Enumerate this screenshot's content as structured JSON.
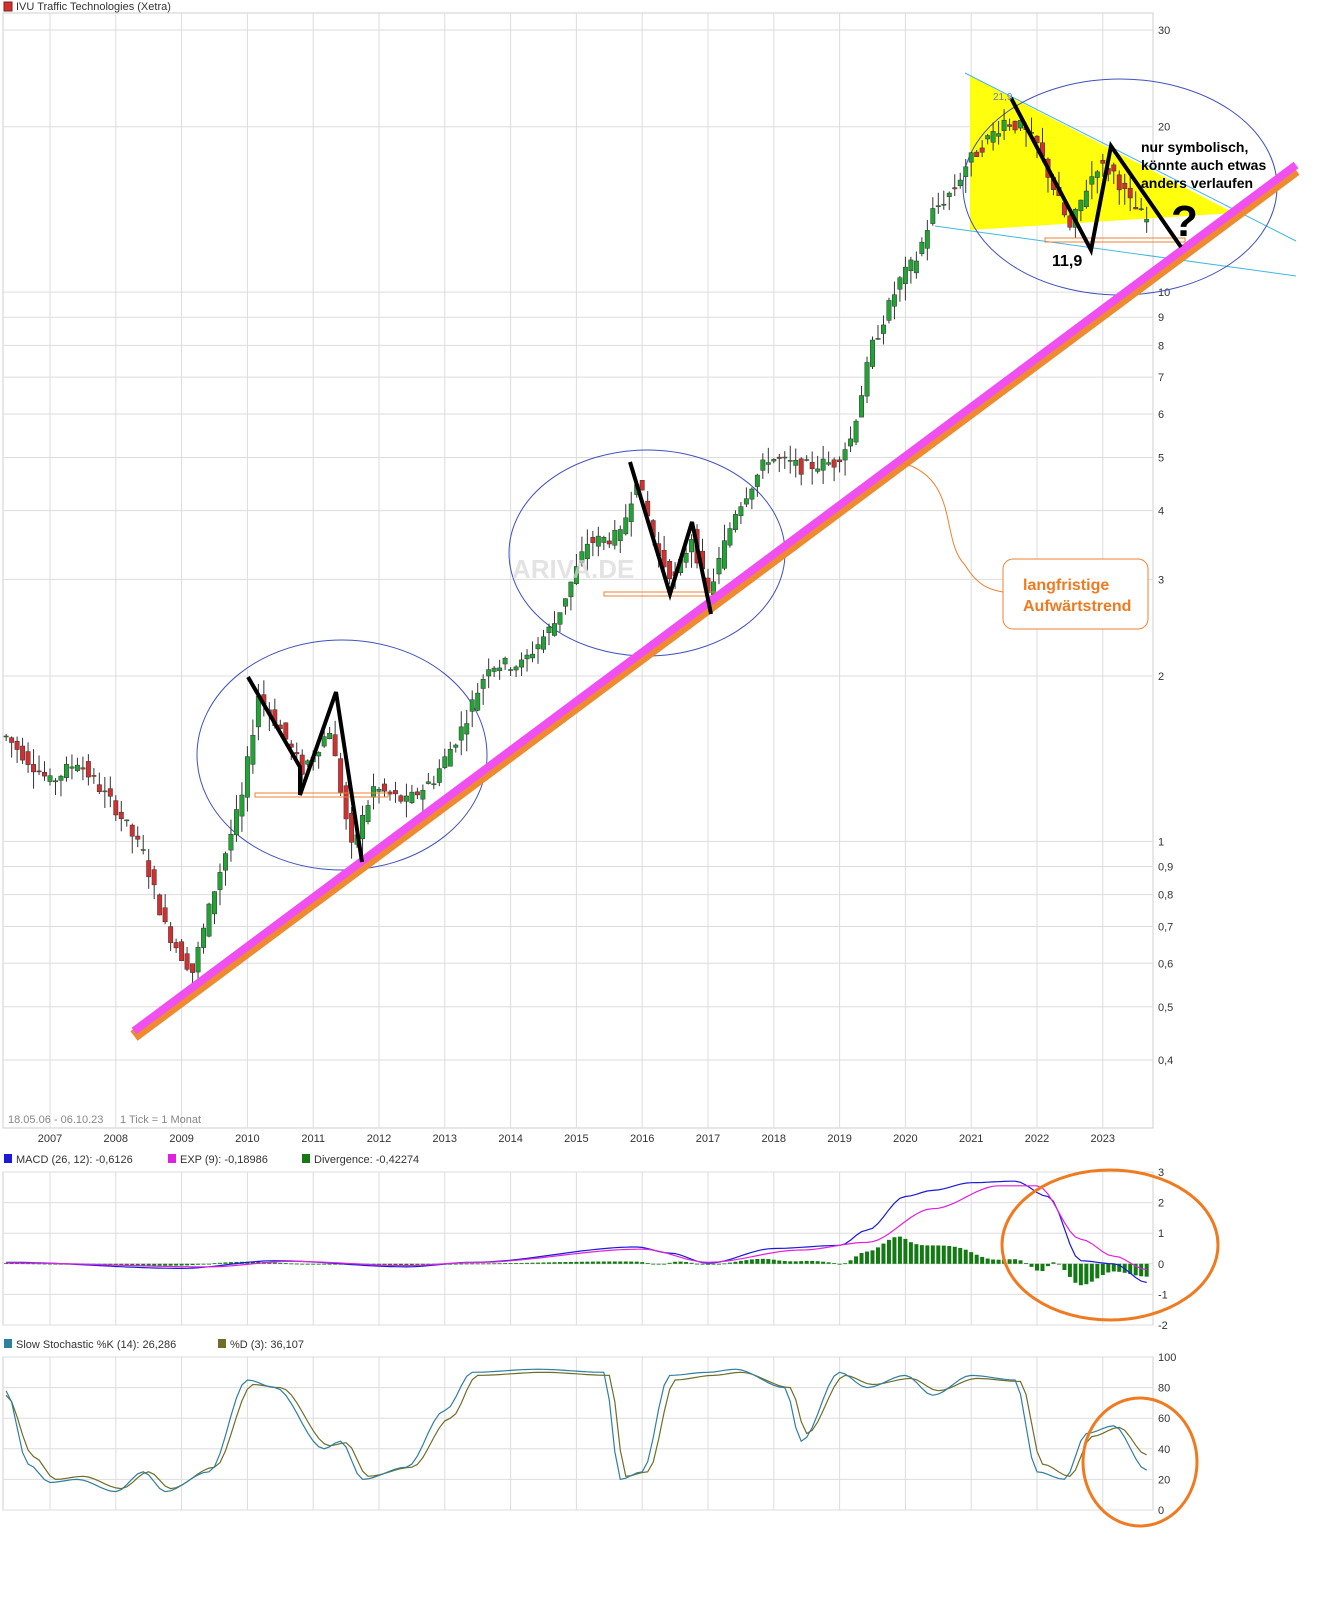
{
  "chart_title": "IVU Traffic Technologies (Xetra)",
  "footer": {
    "range": "18.05.06 - 06.10.23",
    "tick": "1 Tick = 1 Monat"
  },
  "watermark": "ARIVA.DE",
  "colors": {
    "up": "#22a335",
    "down": "#d03030",
    "macd": "#1a1ad8",
    "signal": "#e020e0",
    "divergence": "#137a13",
    "k": "#2f7f9f",
    "d": "#6e6e2a",
    "trend": "#f050f0",
    "trend_edge": "#f08a30",
    "annot": "#f08030",
    "wedge": "#ffff00",
    "grid": "#dddddd"
  },
  "years": [
    "2007",
    "2008",
    "2009",
    "2010",
    "2011",
    "2012",
    "2013",
    "2014",
    "2015",
    "2016",
    "2017",
    "2018",
    "2019",
    "2020",
    "2021",
    "2022",
    "2023"
  ],
  "price_ticks": [
    "30",
    "20",
    "10",
    "9",
    "8",
    "7",
    "6",
    "5",
    "4",
    "3",
    "2",
    "1",
    "0,9",
    "0,8",
    "0,7",
    "0,6",
    "0,5",
    "0,4"
  ],
  "annotations": {
    "low_label": "11,9",
    "high_label": "21,9",
    "note_lines": [
      "nur symbolisch,",
      "könnte auch etwas",
      "anders verlaufen"
    ],
    "question": "?",
    "trend_box": [
      "langfristige",
      "Aufwärtstrend"
    ]
  },
  "chart_data": [
    {
      "type": "candlestick",
      "title": "IVU Traffic Technologies (Xetra)",
      "y_scale": "log",
      "ylim": [
        0.36,
        31
      ],
      "x_range": [
        "2006-05",
        "2023-10"
      ],
      "series_anchors": [
        {
          "date": "2006-05",
          "close": 1.55
        },
        {
          "date": "2007-01",
          "close": 1.28
        },
        {
          "date": "2007-06",
          "close": 1.4
        },
        {
          "date": "2008-01",
          "close": 1.15
        },
        {
          "date": "2008-06",
          "close": 0.95
        },
        {
          "date": "2008-10",
          "close": 0.7
        },
        {
          "date": "2009-01",
          "close": 0.62
        },
        {
          "date": "2009-03",
          "close": 0.58
        },
        {
          "date": "2009-07",
          "close": 0.82
        },
        {
          "date": "2009-12",
          "close": 1.2
        },
        {
          "date": "2010-03",
          "close": 1.85
        },
        {
          "date": "2010-07",
          "close": 1.6
        },
        {
          "date": "2010-11",
          "close": 1.35
        },
        {
          "date": "2011-04",
          "close": 1.6
        },
        {
          "date": "2011-08",
          "close": 0.97
        },
        {
          "date": "2011-12",
          "close": 1.25
        },
        {
          "date": "2012-06",
          "close": 1.18
        },
        {
          "date": "2012-11",
          "close": 1.3
        },
        {
          "date": "2013-04",
          "close": 1.6
        },
        {
          "date": "2013-09",
          "close": 2.1
        },
        {
          "date": "2014-03",
          "close": 2.1
        },
        {
          "date": "2014-09",
          "close": 2.5
        },
        {
          "date": "2015-03",
          "close": 3.5
        },
        {
          "date": "2015-09",
          "close": 3.6
        },
        {
          "date": "2015-12",
          "close": 4.6
        },
        {
          "date": "2016-04",
          "close": 3.3
        },
        {
          "date": "2016-07",
          "close": 3.0
        },
        {
          "date": "2016-10",
          "close": 3.6
        },
        {
          "date": "2017-01",
          "close": 2.8
        },
        {
          "date": "2017-06",
          "close": 4.0
        },
        {
          "date": "2017-12",
          "close": 5.0
        },
        {
          "date": "2018-06",
          "close": 4.8
        },
        {
          "date": "2018-12",
          "close": 4.9
        },
        {
          "date": "2019-03",
          "close": 5.4
        },
        {
          "date": "2019-07",
          "close": 8.0
        },
        {
          "date": "2019-12",
          "close": 10.5
        },
        {
          "date": "2020-03",
          "close": 11.5
        },
        {
          "date": "2020-06",
          "close": 14.0
        },
        {
          "date": "2020-10",
          "close": 15.5
        },
        {
          "date": "2020-12",
          "close": 17.0
        },
        {
          "date": "2021-03",
          "close": 18.5
        },
        {
          "date": "2021-07",
          "close": 20.5
        },
        {
          "date": "2021-10",
          "close": 20.0
        },
        {
          "date": "2022-01",
          "close": 18.5
        },
        {
          "date": "2022-04",
          "close": 15.5
        },
        {
          "date": "2022-07",
          "close": 13.0
        },
        {
          "date": "2022-10",
          "close": 15.5
        },
        {
          "date": "2022-12",
          "close": 17.0
        },
        {
          "date": "2023-03",
          "close": 16.5
        },
        {
          "date": "2023-06",
          "close": 14.5
        },
        {
          "date": "2023-09",
          "close": 13.5
        }
      ],
      "marked_values": {
        "low": "11,9",
        "high": "21,9"
      }
    },
    {
      "type": "line",
      "title": "MACD",
      "ylim": [
        -2,
        3
      ],
      "yticks": [
        "3",
        "2",
        "1",
        "0",
        "-1",
        "-2"
      ],
      "legend": [
        {
          "label": "MACD (26, 12): -0,6126"
        },
        {
          "label": "EXP (9): -0,18986"
        },
        {
          "label": "Divergence: -0,42274"
        }
      ],
      "series": [
        {
          "name": "MACD (26, 12)",
          "points": [
            [
              "2006-05",
              0.05
            ],
            [
              "2009-01",
              -0.15
            ],
            [
              "2010-06",
              0.1
            ],
            [
              "2012-06",
              -0.1
            ],
            [
              "2013-06",
              0.05
            ],
            [
              "2015-12",
              0.55
            ],
            [
              "2016-06",
              0.35
            ],
            [
              "2017-01",
              0.02
            ],
            [
              "2018-01",
              0.5
            ],
            [
              "2019-01",
              0.6
            ],
            [
              "2019-06",
              1.1
            ],
            [
              "2020-01",
              2.2
            ],
            [
              "2020-06",
              2.4
            ],
            [
              "2021-01",
              2.65
            ],
            [
              "2021-09",
              2.7
            ],
            [
              "2022-03",
              2.2
            ],
            [
              "2022-09",
              0.1
            ],
            [
              "2023-03",
              0.0
            ],
            [
              "2023-09",
              -0.61
            ]
          ]
        },
        {
          "name": "EXP (9)",
          "points": [
            [
              "2006-05",
              0.03
            ],
            [
              "2009-06",
              -0.1
            ],
            [
              "2010-09",
              0.08
            ],
            [
              "2012-06",
              -0.06
            ],
            [
              "2013-06",
              0.04
            ],
            [
              "2016-01",
              0.48
            ],
            [
              "2017-01",
              0.05
            ],
            [
              "2018-06",
              0.45
            ],
            [
              "2019-06",
              0.7
            ],
            [
              "2020-06",
              1.8
            ],
            [
              "2021-06",
              2.55
            ],
            [
              "2022-01",
              2.55
            ],
            [
              "2022-09",
              0.8
            ],
            [
              "2023-03",
              0.25
            ],
            [
              "2023-09",
              -0.19
            ]
          ]
        }
      ]
    },
    {
      "type": "line",
      "title": "Slow Stochastic",
      "ylim": [
        0,
        100
      ],
      "yticks": [
        "100",
        "80",
        "60",
        "40",
        "20",
        "0"
      ],
      "legend": [
        {
          "label": "Slow Stochastic %K (14): 26,286"
        },
        {
          "label": "%D (3): 36,107"
        }
      ],
      "series": [
        {
          "name": "Slow Stochastic %K (14)",
          "points": [
            [
              "2006-05",
              78
            ],
            [
              "2006-09",
              30
            ],
            [
              "2007-01",
              18
            ],
            [
              "2007-06",
              20
            ],
            [
              "2008-01",
              12
            ],
            [
              "2008-06",
              25
            ],
            [
              "2008-10",
              12
            ],
            [
              "2009-06",
              25
            ],
            [
              "2010-01",
              85
            ],
            [
              "2010-06",
              80
            ],
            [
              "2011-03",
              40
            ],
            [
              "2011-06",
              45
            ],
            [
              "2011-10",
              20
            ],
            [
              "2012-06",
              28
            ],
            [
              "2013-01",
              65
            ],
            [
              "2013-06",
              90
            ],
            [
              "2014-06",
              92
            ],
            [
              "2015-06",
              90
            ],
            [
              "2015-09",
              20
            ],
            [
              "2016-01",
              25
            ],
            [
              "2016-06",
              88
            ],
            [
              "2017-01",
              90
            ],
            [
              "2017-06",
              92
            ],
            [
              "2018-03",
              80
            ],
            [
              "2018-06",
              45
            ],
            [
              "2019-01",
              90
            ],
            [
              "2019-06",
              80
            ],
            [
              "2020-01",
              88
            ],
            [
              "2020-06",
              75
            ],
            [
              "2021-01",
              88
            ],
            [
              "2021-09",
              85
            ],
            [
              "2022-01",
              25
            ],
            [
              "2022-06",
              20
            ],
            [
              "2022-10",
              50
            ],
            [
              "2023-03",
              55
            ],
            [
              "2023-09",
              26
            ]
          ]
        },
        {
          "name": "%D (3)",
          "points": [
            [
              "2006-05",
              75
            ],
            [
              "2006-10",
              35
            ],
            [
              "2007-02",
              20
            ],
            [
              "2007-07",
              22
            ],
            [
              "2008-02",
              14
            ],
            [
              "2008-07",
              25
            ],
            [
              "2008-11",
              14
            ],
            [
              "2009-07",
              28
            ],
            [
              "2010-02",
              82
            ],
            [
              "2010-07",
              80
            ],
            [
              "2011-04",
              42
            ],
            [
              "2011-07",
              44
            ],
            [
              "2011-11",
              22
            ],
            [
              "2012-07",
              28
            ],
            [
              "2013-02",
              60
            ],
            [
              "2013-07",
              88
            ],
            [
              "2014-07",
              90
            ],
            [
              "2015-07",
              88
            ],
            [
              "2015-10",
              22
            ],
            [
              "2016-02",
              25
            ],
            [
              "2016-07",
              85
            ],
            [
              "2017-02",
              88
            ],
            [
              "2017-07",
              90
            ],
            [
              "2018-04",
              80
            ],
            [
              "2018-07",
              50
            ],
            [
              "2019-02",
              88
            ],
            [
              "2019-07",
              82
            ],
            [
              "2020-02",
              86
            ],
            [
              "2020-07",
              78
            ],
            [
              "2021-02",
              86
            ],
            [
              "2021-10",
              84
            ],
            [
              "2022-02",
              30
            ],
            [
              "2022-07",
              22
            ],
            [
              "2022-11",
              48
            ],
            [
              "2023-04",
              54
            ],
            [
              "2023-09",
              36
            ]
          ]
        }
      ]
    }
  ]
}
